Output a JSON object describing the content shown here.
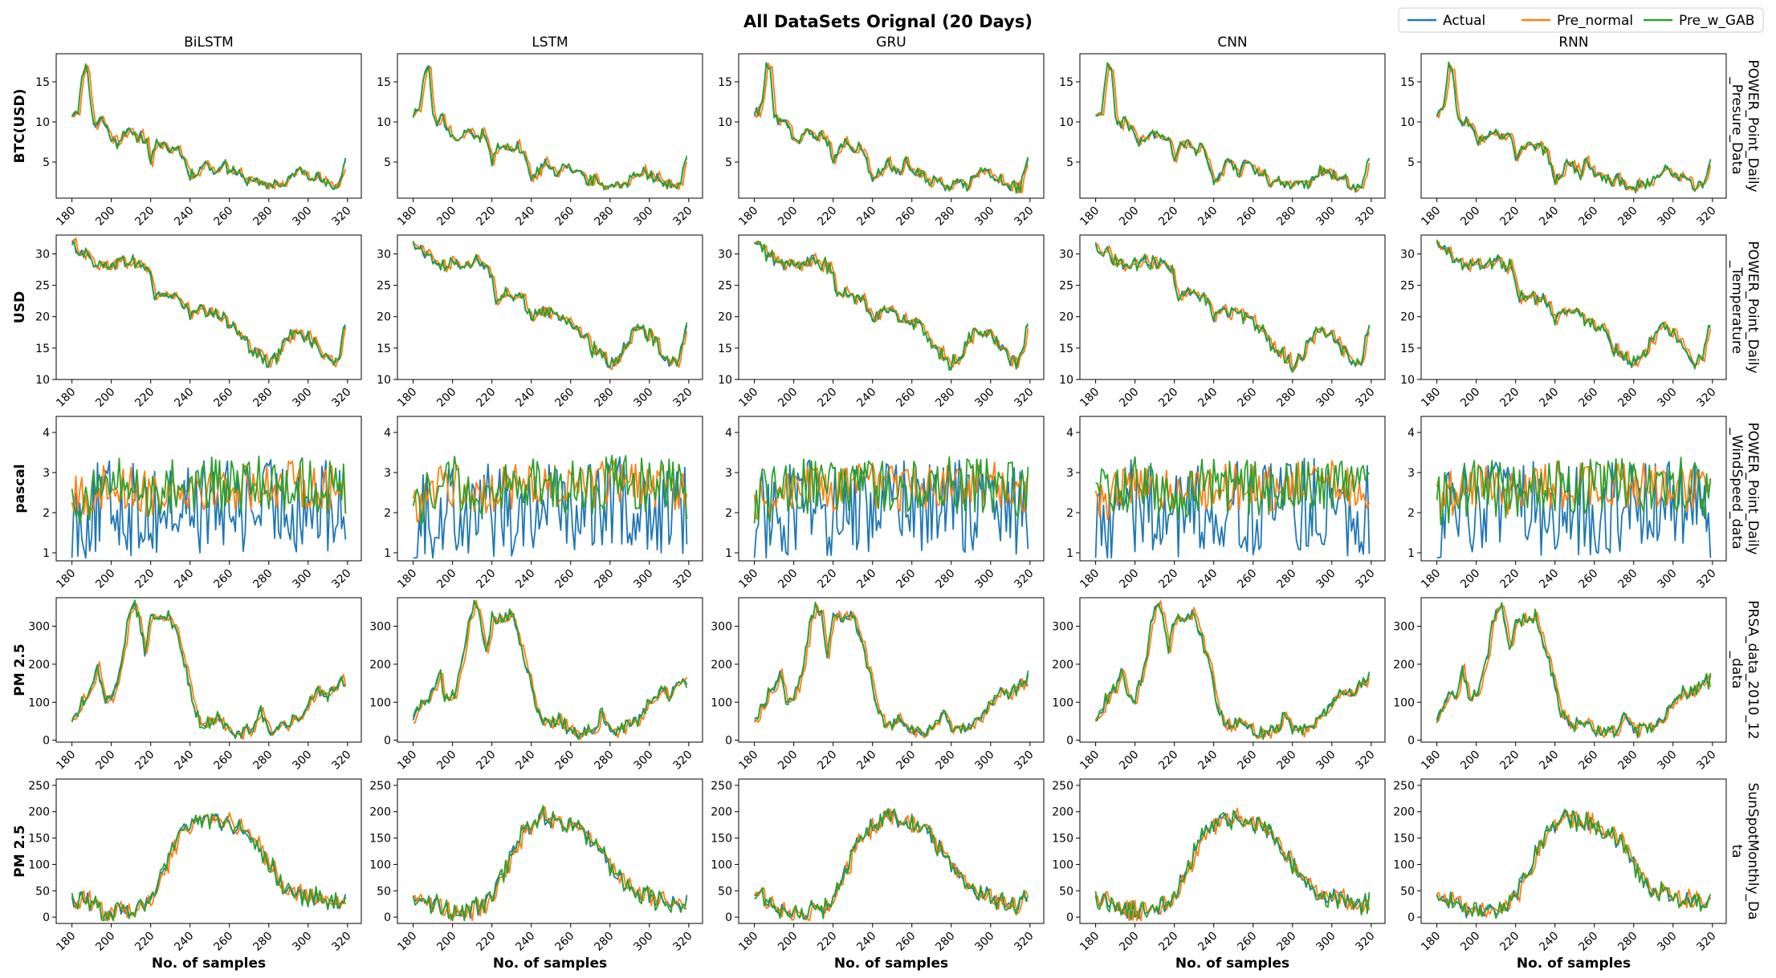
{
  "chart_data": {
    "type": "line",
    "title": "All DataSets Orignal (20 Days)",
    "columns": [
      "BiLSTM",
      "LSTM",
      "GRU",
      "CNN",
      "RNN"
    ],
    "xlabel": "No. of samples",
    "x_range": [
      180,
      319
    ],
    "xlim": [
      172,
      327
    ],
    "x_ticks": [
      180,
      200,
      220,
      240,
      260,
      280,
      300,
      320
    ],
    "series_names": [
      "Actual",
      "Pre_normal",
      "Pre_w_GAB"
    ],
    "colors": {
      "Actual": "#1f77b4",
      "Pre_normal": "#ff7f0e",
      "Pre_w_GAB": "#2ca02c"
    },
    "legend_position": "top-right",
    "grid": false,
    "rows": [
      {
        "dataset": "POWER_Point_Daily\n_Presure_Data",
        "ylabel": "BTC(USD)",
        "ylim": [
          0.5,
          18.5
        ],
        "y_ticks": [
          5,
          10,
          15
        ],
        "actual_keypoints": [
          [
            180,
            11
          ],
          [
            183,
            11.5
          ],
          [
            186,
            16.8
          ],
          [
            188,
            16.5
          ],
          [
            190,
            11
          ],
          [
            192,
            9.5
          ],
          [
            195,
            10.5
          ],
          [
            200,
            8
          ],
          [
            203,
            7.5
          ],
          [
            206,
            8.5
          ],
          [
            208,
            9
          ],
          [
            212,
            8
          ],
          [
            215,
            8.5
          ],
          [
            218,
            7.5
          ],
          [
            220,
            5
          ],
          [
            223,
            7
          ],
          [
            226,
            7.5
          ],
          [
            230,
            6.5
          ],
          [
            233,
            7
          ],
          [
            236,
            6
          ],
          [
            240,
            3
          ],
          [
            244,
            4
          ],
          [
            247,
            5
          ],
          [
            250,
            4.5
          ],
          [
            253,
            3.5
          ],
          [
            256,
            5
          ],
          [
            260,
            4
          ],
          [
            265,
            3.5
          ],
          [
            268,
            2.5
          ],
          [
            272,
            3
          ],
          [
            276,
            2
          ],
          [
            280,
            2
          ],
          [
            284,
            2.5
          ],
          [
            288,
            2
          ],
          [
            292,
            3.5
          ],
          [
            296,
            4
          ],
          [
            300,
            3.5
          ],
          [
            305,
            3
          ],
          [
            310,
            2
          ],
          [
            315,
            2
          ],
          [
            319,
            5.5
          ]
        ],
        "actual_noise": 0.6,
        "pred_bias": 0,
        "pred_noise": 0.3
      },
      {
        "dataset": "POWER_Point_Daily\n_Temperature",
        "ylabel": "USD",
        "ylim": [
          10,
          33
        ],
        "y_ticks": [
          10,
          15,
          20,
          25,
          30
        ],
        "actual_keypoints": [
          [
            180,
            31.5
          ],
          [
            185,
            30.5
          ],
          [
            190,
            29
          ],
          [
            195,
            28
          ],
          [
            200,
            28.5
          ],
          [
            205,
            28.5
          ],
          [
            210,
            29
          ],
          [
            215,
            28
          ],
          [
            218,
            28
          ],
          [
            220,
            26
          ],
          [
            222,
            23
          ],
          [
            225,
            24
          ],
          [
            230,
            23
          ],
          [
            235,
            23
          ],
          [
            240,
            20
          ],
          [
            245,
            21
          ],
          [
            250,
            20.5
          ],
          [
            255,
            20
          ],
          [
            260,
            19
          ],
          [
            265,
            18
          ],
          [
            270,
            15
          ],
          [
            275,
            14
          ],
          [
            280,
            12.5
          ],
          [
            285,
            14
          ],
          [
            290,
            17
          ],
          [
            295,
            18
          ],
          [
            300,
            17
          ],
          [
            305,
            15
          ],
          [
            310,
            13
          ],
          [
            315,
            13
          ],
          [
            319,
            19
          ]
        ],
        "actual_noise": 1.0,
        "pred_bias": 0,
        "pred_noise": 0.4
      },
      {
        "dataset": "POWER_Point_Daily\n_WindSpeed_data",
        "ylabel": "pascal",
        "ylim": [
          0.8,
          4.4
        ],
        "y_ticks": [
          1,
          2,
          3,
          4
        ],
        "actual_keypoints": [
          [
            180,
            1.8
          ],
          [
            200,
            2.2
          ],
          [
            220,
            2.0
          ],
          [
            240,
            2.2
          ],
          [
            260,
            2.1
          ],
          [
            280,
            2.2
          ],
          [
            300,
            2.2
          ],
          [
            319,
            2.0
          ]
        ],
        "actual_noise": 1.2,
        "pred_bias": 0.5,
        "pred_noise": 0.6
      },
      {
        "dataset": "PRSA_data_2010_12\n_data",
        "ylabel": "PM 2.5",
        "ylim": [
          -5,
          375
        ],
        "y_ticks": [
          0,
          100,
          200,
          300
        ],
        "actual_keypoints": [
          [
            180,
            55
          ],
          [
            183,
            80
          ],
          [
            186,
            110
          ],
          [
            190,
            130
          ],
          [
            193,
            190
          ],
          [
            196,
            110
          ],
          [
            200,
            110
          ],
          [
            205,
            200
          ],
          [
            208,
            300
          ],
          [
            211,
            360
          ],
          [
            214,
            330
          ],
          [
            217,
            230
          ],
          [
            220,
            320
          ],
          [
            225,
            320
          ],
          [
            230,
            330
          ],
          [
            235,
            240
          ],
          [
            240,
            150
          ],
          [
            242,
            80
          ],
          [
            245,
            50
          ],
          [
            250,
            40
          ],
          [
            254,
            60
          ],
          [
            258,
            30
          ],
          [
            263,
            20
          ],
          [
            268,
            20
          ],
          [
            272,
            30
          ],
          [
            276,
            70
          ],
          [
            280,
            25
          ],
          [
            285,
            30
          ],
          [
            290,
            40
          ],
          [
            295,
            60
          ],
          [
            300,
            100
          ],
          [
            305,
            130
          ],
          [
            310,
            120
          ],
          [
            315,
            150
          ],
          [
            319,
            160
          ]
        ],
        "actual_noise": 15,
        "pred_bias": 0,
        "pred_noise": 8
      },
      {
        "dataset": "SunSpotMonthly_Da\nta",
        "ylabel": "PM 2.5",
        "ylim": [
          -12,
          262
        ],
        "y_ticks": [
          0,
          50,
          100,
          150,
          200,
          250
        ],
        "actual_keypoints": [
          [
            180,
            30
          ],
          [
            185,
            40
          ],
          [
            190,
            25
          ],
          [
            195,
            15
          ],
          [
            200,
            10
          ],
          [
            205,
            10
          ],
          [
            210,
            15
          ],
          [
            215,
            20
          ],
          [
            220,
            40
          ],
          [
            225,
            80
          ],
          [
            230,
            120
          ],
          [
            235,
            160
          ],
          [
            240,
            175
          ],
          [
            245,
            190
          ],
          [
            250,
            185
          ],
          [
            255,
            180
          ],
          [
            260,
            175
          ],
          [
            265,
            170
          ],
          [
            270,
            150
          ],
          [
            275,
            130
          ],
          [
            280,
            100
          ],
          [
            285,
            70
          ],
          [
            290,
            55
          ],
          [
            295,
            45
          ],
          [
            300,
            40
          ],
          [
            305,
            35
          ],
          [
            310,
            30
          ],
          [
            315,
            25
          ],
          [
            319,
            30
          ]
        ],
        "actual_noise": 16,
        "pred_bias": 0,
        "pred_noise": 8
      }
    ]
  }
}
